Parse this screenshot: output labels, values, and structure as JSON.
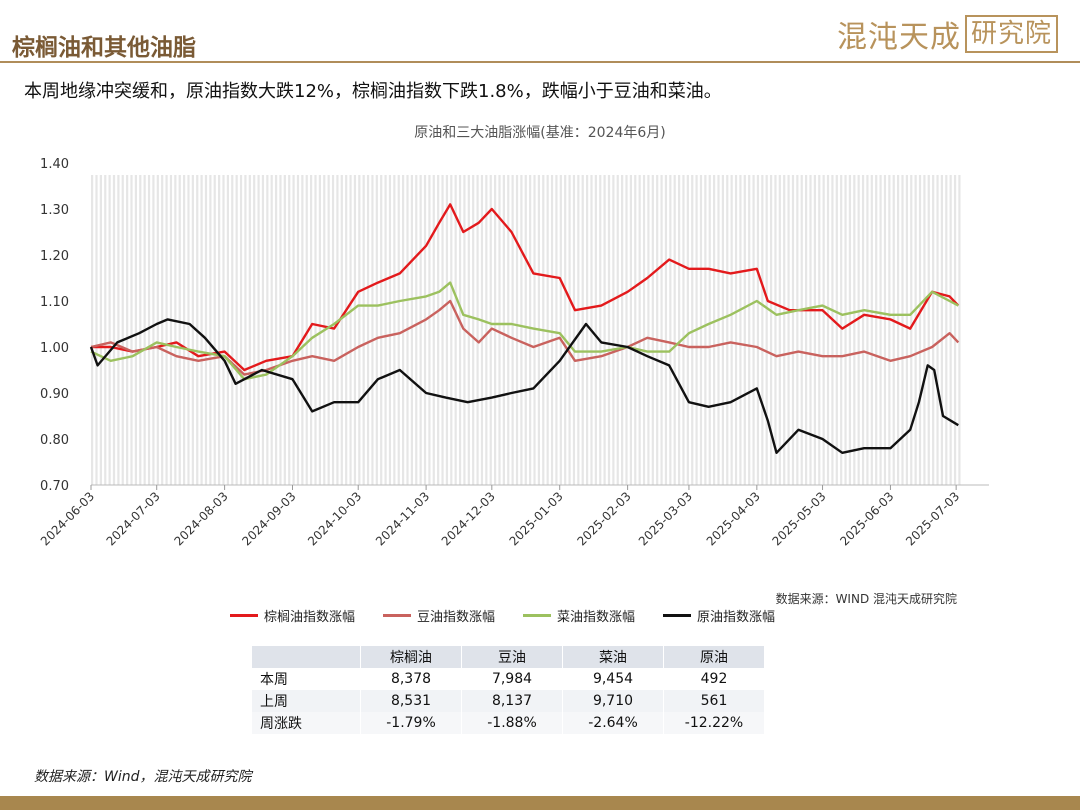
{
  "page": {
    "title": "棕榈油和其他油脂",
    "brand_left": "混沌天成",
    "brand_right": "研究院",
    "summary": "本周地缘冲突缓和，原油指数大跌12%，棕榈油指数下跌1.8%，跌幅小于豆油和菜油。",
    "footer_source": "数据来源：Wind，混沌天成研究院"
  },
  "colors": {
    "palm": "#e31a1c",
    "soy": "#c9625e",
    "rapeseed": "#9cc15f",
    "crude": "#111111",
    "brand": "#b8935c"
  },
  "chart_data": {
    "type": "line",
    "title": "原油和三大油脂涨幅(基准：2024年6月)",
    "source_note": "数据来源：WIND  混沌天成研究院",
    "x_tick_labels": [
      "2024-06-03",
      "2024-07-03",
      "2024-08-03",
      "2024-09-03",
      "2024-10-03",
      "2024-11-03",
      "2024-12-03",
      "2025-01-03",
      "2025-02-03",
      "2025-03-03",
      "2025-04-03",
      "2025-05-03",
      "2025-06-03",
      "2025-07-03"
    ],
    "x_range": [
      "2024-06-03",
      "2025-07-18"
    ],
    "ylim": [
      0.7,
      1.4
    ],
    "y_ticks": [
      "0.70",
      "0.80",
      "0.90",
      "1.00",
      "1.10",
      "1.20",
      "1.30",
      "1.40"
    ],
    "series": [
      {
        "name": "棕榈油指数涨幅",
        "points": [
          [
            "2024-06-03",
            1.0
          ],
          [
            "2024-06-12",
            1.0
          ],
          [
            "2024-06-22",
            0.99
          ],
          [
            "2024-07-03",
            1.0
          ],
          [
            "2024-07-12",
            1.01
          ],
          [
            "2024-07-22",
            0.98
          ],
          [
            "2024-08-03",
            0.99
          ],
          [
            "2024-08-12",
            0.95
          ],
          [
            "2024-08-22",
            0.97
          ],
          [
            "2024-09-03",
            0.98
          ],
          [
            "2024-09-12",
            1.05
          ],
          [
            "2024-09-22",
            1.04
          ],
          [
            "2024-10-03",
            1.12
          ],
          [
            "2024-10-12",
            1.14
          ],
          [
            "2024-10-22",
            1.16
          ],
          [
            "2024-11-03",
            1.22
          ],
          [
            "2024-11-09",
            1.27
          ],
          [
            "2024-11-14",
            1.31
          ],
          [
            "2024-11-20",
            1.25
          ],
          [
            "2024-11-27",
            1.27
          ],
          [
            "2024-12-03",
            1.3
          ],
          [
            "2024-12-12",
            1.25
          ],
          [
            "2024-12-22",
            1.16
          ],
          [
            "2025-01-03",
            1.15
          ],
          [
            "2025-01-10",
            1.08
          ],
          [
            "2025-01-22",
            1.09
          ],
          [
            "2025-02-03",
            1.12
          ],
          [
            "2025-02-12",
            1.15
          ],
          [
            "2025-02-22",
            1.19
          ],
          [
            "2025-03-03",
            1.17
          ],
          [
            "2025-03-12",
            1.17
          ],
          [
            "2025-03-22",
            1.16
          ],
          [
            "2025-04-03",
            1.17
          ],
          [
            "2025-04-08",
            1.1
          ],
          [
            "2025-04-18",
            1.08
          ],
          [
            "2025-05-03",
            1.08
          ],
          [
            "2025-05-12",
            1.04
          ],
          [
            "2025-05-22",
            1.07
          ],
          [
            "2025-06-03",
            1.06
          ],
          [
            "2025-06-12",
            1.04
          ],
          [
            "2025-06-22",
            1.12
          ],
          [
            "2025-06-30",
            1.11
          ],
          [
            "2025-07-04",
            1.09
          ]
        ]
      },
      {
        "name": "豆油指数涨幅",
        "points": [
          [
            "2024-06-03",
            1.0
          ],
          [
            "2024-06-12",
            1.01
          ],
          [
            "2024-06-22",
            0.99
          ],
          [
            "2024-07-03",
            1.0
          ],
          [
            "2024-07-12",
            0.98
          ],
          [
            "2024-07-22",
            0.97
          ],
          [
            "2024-08-03",
            0.98
          ],
          [
            "2024-08-12",
            0.94
          ],
          [
            "2024-08-22",
            0.95
          ],
          [
            "2024-09-03",
            0.97
          ],
          [
            "2024-09-12",
            0.98
          ],
          [
            "2024-09-22",
            0.97
          ],
          [
            "2024-10-03",
            1.0
          ],
          [
            "2024-10-12",
            1.02
          ],
          [
            "2024-10-22",
            1.03
          ],
          [
            "2024-11-03",
            1.06
          ],
          [
            "2024-11-09",
            1.08
          ],
          [
            "2024-11-14",
            1.1
          ],
          [
            "2024-11-20",
            1.04
          ],
          [
            "2024-11-27",
            1.01
          ],
          [
            "2024-12-03",
            1.04
          ],
          [
            "2024-12-12",
            1.02
          ],
          [
            "2024-12-22",
            1.0
          ],
          [
            "2025-01-03",
            1.02
          ],
          [
            "2025-01-10",
            0.97
          ],
          [
            "2025-01-22",
            0.98
          ],
          [
            "2025-02-03",
            1.0
          ],
          [
            "2025-02-12",
            1.02
          ],
          [
            "2025-02-22",
            1.01
          ],
          [
            "2025-03-03",
            1.0
          ],
          [
            "2025-03-12",
            1.0
          ],
          [
            "2025-03-22",
            1.01
          ],
          [
            "2025-04-03",
            1.0
          ],
          [
            "2025-04-12",
            0.98
          ],
          [
            "2025-04-22",
            0.99
          ],
          [
            "2025-05-03",
            0.98
          ],
          [
            "2025-05-12",
            0.98
          ],
          [
            "2025-05-22",
            0.99
          ],
          [
            "2025-06-03",
            0.97
          ],
          [
            "2025-06-12",
            0.98
          ],
          [
            "2025-06-22",
            1.0
          ],
          [
            "2025-06-30",
            1.03
          ],
          [
            "2025-07-04",
            1.01
          ]
        ]
      },
      {
        "name": "菜油指数涨幅",
        "points": [
          [
            "2024-06-03",
            0.99
          ],
          [
            "2024-06-12",
            0.97
          ],
          [
            "2024-06-22",
            0.98
          ],
          [
            "2024-07-03",
            1.01
          ],
          [
            "2024-07-12",
            1.0
          ],
          [
            "2024-07-22",
            0.99
          ],
          [
            "2024-08-03",
            0.98
          ],
          [
            "2024-08-12",
            0.93
          ],
          [
            "2024-08-22",
            0.94
          ],
          [
            "2024-09-03",
            0.98
          ],
          [
            "2024-09-12",
            1.02
          ],
          [
            "2024-09-22",
            1.05
          ],
          [
            "2024-10-03",
            1.09
          ],
          [
            "2024-10-12",
            1.09
          ],
          [
            "2024-10-22",
            1.1
          ],
          [
            "2024-11-03",
            1.11
          ],
          [
            "2024-11-09",
            1.12
          ],
          [
            "2024-11-14",
            1.14
          ],
          [
            "2024-11-20",
            1.07
          ],
          [
            "2024-11-27",
            1.06
          ],
          [
            "2024-12-03",
            1.05
          ],
          [
            "2024-12-12",
            1.05
          ],
          [
            "2024-12-22",
            1.04
          ],
          [
            "2025-01-03",
            1.03
          ],
          [
            "2025-01-10",
            0.99
          ],
          [
            "2025-01-22",
            0.99
          ],
          [
            "2025-02-03",
            1.0
          ],
          [
            "2025-02-12",
            0.99
          ],
          [
            "2025-02-22",
            0.99
          ],
          [
            "2025-03-03",
            1.03
          ],
          [
            "2025-03-12",
            1.05
          ],
          [
            "2025-03-22",
            1.07
          ],
          [
            "2025-04-03",
            1.1
          ],
          [
            "2025-04-12",
            1.07
          ],
          [
            "2025-04-22",
            1.08
          ],
          [
            "2025-05-03",
            1.09
          ],
          [
            "2025-05-12",
            1.07
          ],
          [
            "2025-05-22",
            1.08
          ],
          [
            "2025-06-03",
            1.07
          ],
          [
            "2025-06-12",
            1.07
          ],
          [
            "2025-06-22",
            1.12
          ],
          [
            "2025-06-30",
            1.1
          ],
          [
            "2025-07-04",
            1.09
          ]
        ]
      },
      {
        "name": "原油指数涨幅",
        "points": [
          [
            "2024-06-03",
            1.0
          ],
          [
            "2024-06-06",
            0.96
          ],
          [
            "2024-06-15",
            1.01
          ],
          [
            "2024-06-25",
            1.03
          ],
          [
            "2024-07-03",
            1.05
          ],
          [
            "2024-07-08",
            1.06
          ],
          [
            "2024-07-18",
            1.05
          ],
          [
            "2024-07-25",
            1.02
          ],
          [
            "2024-08-03",
            0.97
          ],
          [
            "2024-08-08",
            0.92
          ],
          [
            "2024-08-20",
            0.95
          ],
          [
            "2024-09-03",
            0.93
          ],
          [
            "2024-09-12",
            0.86
          ],
          [
            "2024-09-22",
            0.88
          ],
          [
            "2024-10-03",
            0.88
          ],
          [
            "2024-10-12",
            0.93
          ],
          [
            "2024-10-22",
            0.95
          ],
          [
            "2024-11-03",
            0.9
          ],
          [
            "2024-11-12",
            0.89
          ],
          [
            "2024-11-22",
            0.88
          ],
          [
            "2024-12-03",
            0.89
          ],
          [
            "2024-12-12",
            0.9
          ],
          [
            "2024-12-22",
            0.91
          ],
          [
            "2025-01-03",
            0.97
          ],
          [
            "2025-01-15",
            1.05
          ],
          [
            "2025-01-22",
            1.01
          ],
          [
            "2025-02-03",
            1.0
          ],
          [
            "2025-02-12",
            0.98
          ],
          [
            "2025-02-22",
            0.96
          ],
          [
            "2025-03-03",
            0.88
          ],
          [
            "2025-03-12",
            0.87
          ],
          [
            "2025-03-22",
            0.88
          ],
          [
            "2025-04-03",
            0.91
          ],
          [
            "2025-04-08",
            0.84
          ],
          [
            "2025-04-12",
            0.77
          ],
          [
            "2025-04-22",
            0.82
          ],
          [
            "2025-05-03",
            0.8
          ],
          [
            "2025-05-12",
            0.77
          ],
          [
            "2025-05-22",
            0.78
          ],
          [
            "2025-06-03",
            0.78
          ],
          [
            "2025-06-12",
            0.82
          ],
          [
            "2025-06-16",
            0.88
          ],
          [
            "2025-06-20",
            0.96
          ],
          [
            "2025-06-23",
            0.95
          ],
          [
            "2025-06-27",
            0.85
          ],
          [
            "2025-07-04",
            0.83
          ]
        ]
      }
    ],
    "table": {
      "columns": [
        "",
        "棕榈油",
        "豆油",
        "菜油",
        "原油"
      ],
      "rows": [
        [
          "本周",
          "8,378",
          "7,984",
          "9,454",
          "492"
        ],
        [
          "上周",
          "8,531",
          "8,137",
          "9,710",
          "561"
        ],
        [
          "周涨跌",
          "-1.79%",
          "-1.88%",
          "-2.64%",
          "-12.22%"
        ]
      ]
    }
  }
}
